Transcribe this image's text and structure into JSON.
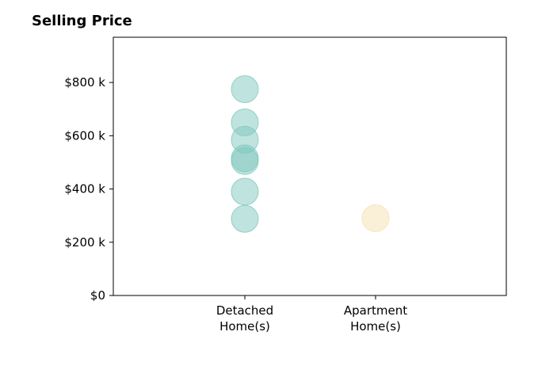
{
  "chart_data": {
    "type": "scatter",
    "title": "Selling Price",
    "categories": [
      "Detached Home(s)",
      "Apartment Home(s)"
    ],
    "category_lines": [
      [
        "Detached",
        "Home(s)"
      ],
      [
        "Apartment",
        "Home(s)"
      ]
    ],
    "y_ticks": [
      "$0",
      "$200 k",
      "$400 k",
      "$600 k",
      "$800 k"
    ],
    "y_tick_values": [
      0,
      200,
      400,
      600,
      800
    ],
    "ylim": [
      0,
      970
    ],
    "y_unit": "$ thousands",
    "series": [
      {
        "category": "Detached Home(s)",
        "color": "#7fc8bd",
        "values": [
          775,
          650,
          585,
          515,
          505,
          390,
          288
        ]
      },
      {
        "category": "Apartment Home(s)",
        "color": "#f5e0b0",
        "values": [
          290
        ]
      }
    ],
    "grid": false,
    "legend": "none"
  }
}
